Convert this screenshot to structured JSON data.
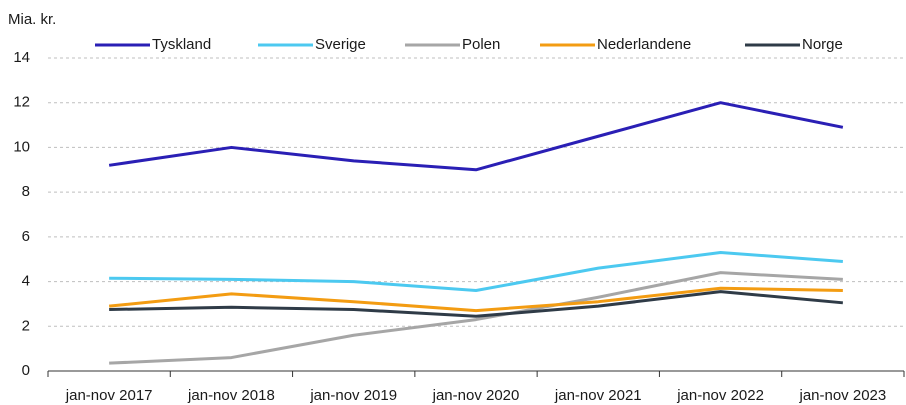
{
  "chart_data": {
    "type": "line",
    "y_label": "Mia. kr.",
    "categories": [
      "jan-nov 2017",
      "jan-nov 2018",
      "jan-nov 2019",
      "jan-nov 2020",
      "jan-nov 2021",
      "jan-nov 2022",
      "jan-nov 2023"
    ],
    "series": [
      {
        "name": "Tyskland",
        "color": "#2a1fb5",
        "values": [
          9.2,
          10.0,
          9.4,
          9.0,
          10.5,
          12.0,
          10.9
        ]
      },
      {
        "name": "Sverige",
        "color": "#4cc9f0",
        "values": [
          4.15,
          4.1,
          4.0,
          3.6,
          4.6,
          5.3,
          4.9
        ]
      },
      {
        "name": "Polen",
        "color": "#a6a6a6",
        "values": [
          0.35,
          0.6,
          1.6,
          2.3,
          3.3,
          4.4,
          4.1
        ]
      },
      {
        "name": "Nederlandene",
        "color": "#f39c12",
        "values": [
          2.9,
          3.45,
          3.1,
          2.7,
          3.1,
          3.7,
          3.6
        ]
      },
      {
        "name": "Norge",
        "color": "#2f3b47",
        "values": [
          2.75,
          2.85,
          2.75,
          2.45,
          2.9,
          3.55,
          3.05
        ]
      }
    ],
    "ylim": [
      0,
      14
    ],
    "yticks": [
      0,
      2,
      4,
      6,
      8,
      10,
      12,
      14
    ],
    "grid": true,
    "legend": "top"
  }
}
